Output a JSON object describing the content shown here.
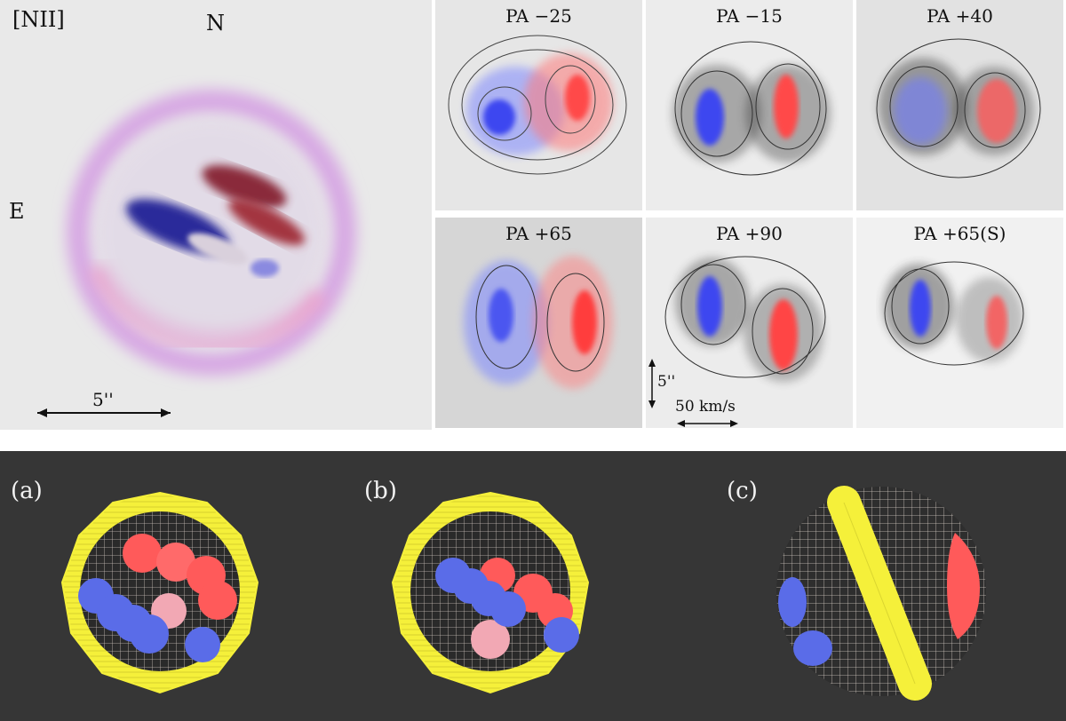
{
  "main_panel": {
    "line_label": "[NII]",
    "north": "N",
    "east": "E",
    "scale": "5''"
  },
  "pa_panels": [
    {
      "title": "PA −25"
    },
    {
      "title": "PA −15"
    },
    {
      "title": "PA +40"
    },
    {
      "title": "PA +65"
    },
    {
      "title": "PA +90"
    },
    {
      "title": "PA +65(S)"
    }
  ],
  "scale_bars": {
    "spatial": "5''",
    "velocity": "50 km/s"
  },
  "models": [
    {
      "label": "(a)"
    },
    {
      "label": "(b)"
    },
    {
      "label": "(c)"
    }
  ],
  "colors": {
    "redshift": "#ff5a5a",
    "blueshift": "#5a6cff",
    "ring": "#f5f03a",
    "wire": "#f2e6dc",
    "band_bg": "#363636"
  }
}
